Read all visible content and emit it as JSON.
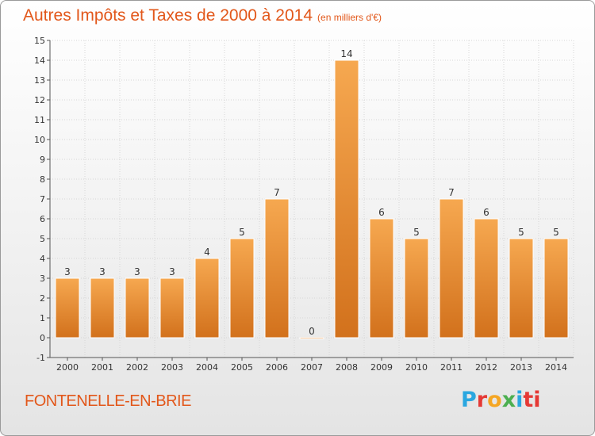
{
  "header": {
    "title": "Autres Impôts et Taxes de 2000 à 2014",
    "unit": "(en milliers d'€)"
  },
  "footer": {
    "commune": "FONTENELLE-EN-BRIE",
    "logo_letters": [
      "P",
      "r",
      "o",
      "x",
      "i",
      "ti"
    ]
  },
  "colors": {
    "bar_light": "#f6a850",
    "bar_dark": "#d2711c",
    "title": "#e2571a"
  },
  "chart_data": {
    "type": "bar",
    "title": "Autres Impôts et Taxes de 2000 à 2014",
    "xlabel": "",
    "ylabel": "",
    "categories": [
      "2000",
      "2001",
      "2002",
      "2003",
      "2004",
      "2005",
      "2006",
      "2007",
      "2008",
      "2009",
      "2010",
      "2011",
      "2012",
      "2013",
      "2014"
    ],
    "values": [
      3,
      3,
      3,
      3,
      4,
      5,
      7,
      0,
      14,
      6,
      5,
      7,
      6,
      5,
      5
    ],
    "ylim": [
      -1,
      15
    ],
    "yticks": [
      -1,
      0,
      1,
      2,
      3,
      4,
      5,
      6,
      7,
      8,
      9,
      10,
      11,
      12,
      13,
      14,
      15
    ],
    "grid": true,
    "legend": "none"
  }
}
